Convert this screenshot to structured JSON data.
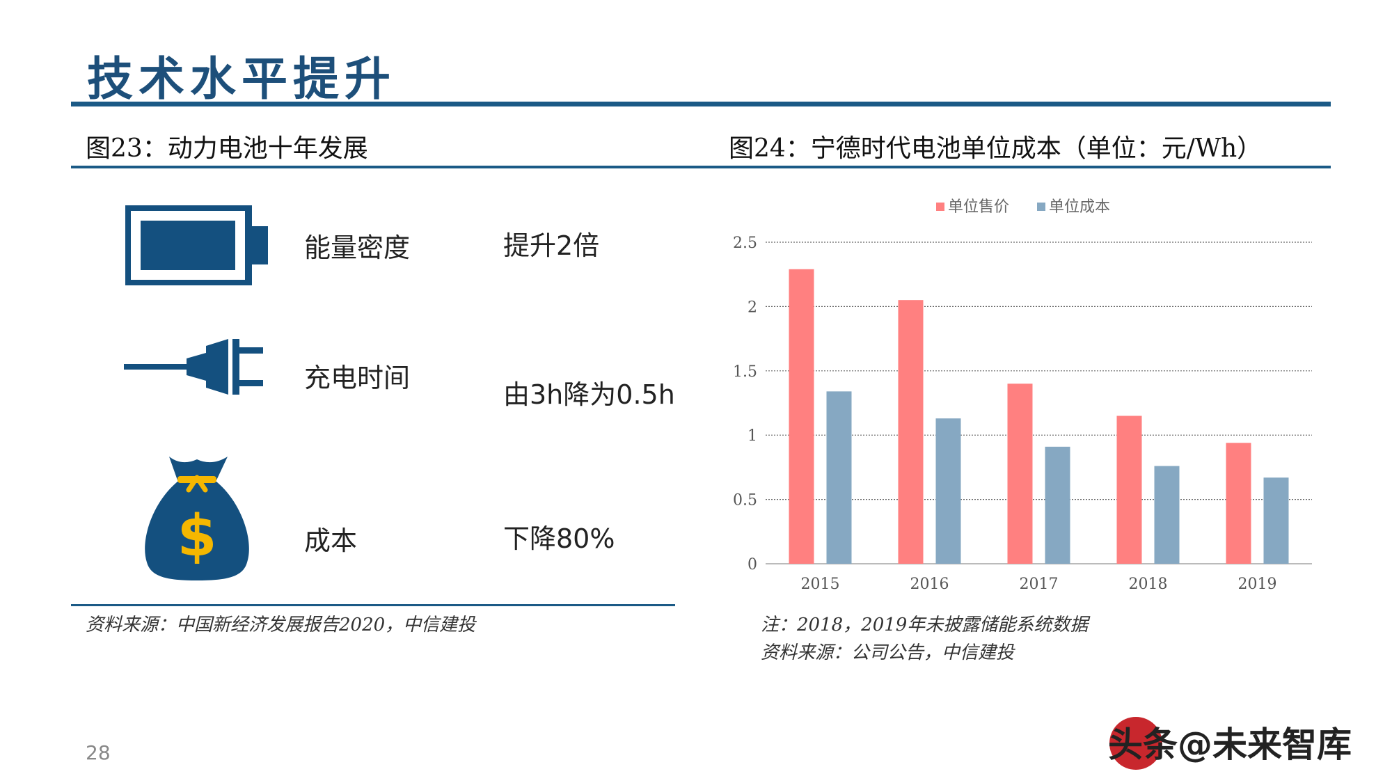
{
  "page": {
    "title": "技术水平提升",
    "page_number": "28",
    "watermark": "头条@未来智库"
  },
  "left_figure": {
    "title": "图23：动力电池十年发展",
    "rows": [
      {
        "icon": "battery-icon",
        "label": "能量密度",
        "value": "提升2倍"
      },
      {
        "icon": "plug-icon",
        "label": "充电时间",
        "value": "由3h降为0.5h"
      },
      {
        "icon": "money-bag-icon",
        "label": "成本",
        "value": "下降80%"
      }
    ],
    "source": "资料来源：中国新经济发展报告2020，中信建投"
  },
  "right_figure": {
    "title": "图24：宁德时代电池单位成本（单位：元/Wh）",
    "note": "注：2018，2019年未披露储能系统数据",
    "source": "资料来源：公司公告，中信建投"
  },
  "colors": {
    "accent": "#1b5a86",
    "icon": "#14507f",
    "price": "#ff8080",
    "cost": "#86a8c2",
    "gold": "#f5b700"
  },
  "chart_data": {
    "type": "bar",
    "categories": [
      "2015",
      "2016",
      "2017",
      "2018",
      "2019"
    ],
    "series": [
      {
        "name": "单位售价",
        "values": [
          2.29,
          2.05,
          1.4,
          1.15,
          0.94
        ]
      },
      {
        "name": "单位成本",
        "values": [
          1.34,
          1.13,
          0.91,
          0.76,
          0.67
        ]
      }
    ],
    "ylim": [
      0,
      2.5
    ],
    "yticks": [
      "0",
      "0.5",
      "1",
      "1.5",
      "2",
      "2.5"
    ],
    "legend_position": "top-center",
    "grid": true
  }
}
